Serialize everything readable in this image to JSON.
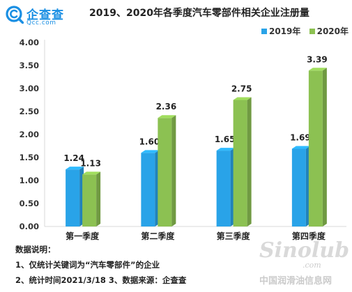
{
  "brand": {
    "name": "企查查",
    "domain": "Qcc.com",
    "icon": "magnifier-c-icon",
    "color": "#1a8fe3"
  },
  "chart_data": {
    "type": "bar",
    "title": "2019、2020年各季度汽车零部件相关企业注册量",
    "categories": [
      "第一季度",
      "第二季度",
      "第三季度",
      "第四季度"
    ],
    "series": [
      {
        "name": "2019年",
        "values": [
          1.24,
          1.6,
          1.65,
          1.69
        ],
        "labels": [
          "1.24",
          "1.60",
          "1.65",
          "1.69"
        ],
        "color": "#29a3e8"
      },
      {
        "name": "2020年",
        "values": [
          1.13,
          2.36,
          2.75,
          3.39
        ],
        "labels": [
          "1.13",
          "2.36",
          "2.75",
          "3.39"
        ],
        "color": "#8cc152"
      }
    ],
    "yticks": [
      "0.00",
      "0.50",
      "1.00",
      "1.50",
      "2.00",
      "2.50",
      "3.00",
      "3.50",
      "4.00"
    ],
    "ylim": [
      0,
      4
    ],
    "grid": false,
    "legend_position": "top-right",
    "style": "3d-bars"
  },
  "notes": {
    "heading": "数据说明：",
    "line1": "1、仅统计关键词为“汽车零部件”的企业",
    "line2": "2、统计时间2021/3/18    3、数据来源：企查查"
  },
  "watermark": {
    "logo": "Sinolub",
    "domain": ".com",
    "text": "中国润滑油信息网"
  }
}
